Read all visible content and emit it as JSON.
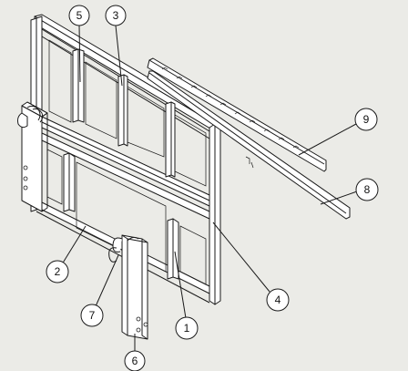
{
  "balloons": [
    {
      "label": "5"
    },
    {
      "label": "3"
    },
    {
      "label": "9"
    },
    {
      "label": "8"
    },
    {
      "label": "4"
    },
    {
      "label": "2"
    },
    {
      "label": "7"
    },
    {
      "label": "1"
    },
    {
      "label": "6"
    }
  ]
}
